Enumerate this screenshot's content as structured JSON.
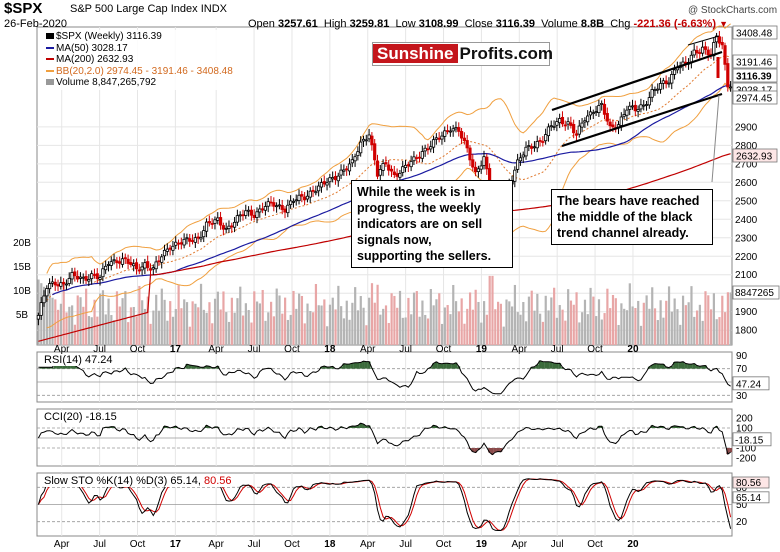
{
  "header": {
    "symbol": "$SPX",
    "name": "S&P 500 Large Cap Index",
    "exchange": "INDX",
    "date": "26-Feb-2020",
    "open_label": "Open",
    "open": "3257.61",
    "high_label": "High",
    "high": "3259.81",
    "low_label": "Low",
    "low": "3108.99",
    "close_label": "Close",
    "close": "3116.39",
    "volume_label": "Volume",
    "volume": "8.8B",
    "chg_label": "Chg",
    "chg": "-221.36 (-6.63%)",
    "watermark": "@ StockCharts.com"
  },
  "logo": {
    "part1": "Sunshine",
    "part2": "Profits.com"
  },
  "legend": [
    {
      "text": "$SPX (Weekly) 3116.39",
      "color": "#000000"
    },
    {
      "text": "MA(50) 3028.17",
      "color": "#1a1aa0"
    },
    {
      "text": "MA(200) 2632.93",
      "color": "#c00000"
    },
    {
      "text": "BB(20,2.0) 2974.45 - 3191.46 - 3408.48",
      "color": "#d2691e"
    },
    {
      "text": "Volume 8,847,265,792",
      "color": "#000000"
    }
  ],
  "annotations": {
    "left": "While the week is in\nprogress, the weekly\nindicators are on sell\nsignals now,\nsupporting the sellers.",
    "right": "The bears have reached\nthe middle of the black\ntrend channel already."
  },
  "colors": {
    "up": "#000000",
    "down": "#d00000",
    "vol_up": "#b4b4b4",
    "vol_down": "#e8a6a6",
    "ma50": "#1a1aa0",
    "ma200": "#c00000",
    "bb": "#f0a040",
    "bbmid": "#e07a30",
    "sto_k": "#000000",
    "sto_d": "#d00000",
    "ind_fill": "#3a6a3a",
    "ind_fill_low": "#8a4a4a"
  },
  "chart_data": [
    {
      "type": "candlestick",
      "title": "$SPX (Weekly) 3116.39",
      "x_ticks": [
        "Apr",
        "Jul",
        "Oct",
        "17",
        "Apr",
        "Jul",
        "Oct",
        "18",
        "Apr",
        "Jul",
        "Oct",
        "19",
        "Apr",
        "Jul",
        "Oct",
        "20"
      ],
      "ylim": [
        1720,
        3440
      ],
      "y_ticks": [
        1800,
        1900,
        2000,
        2100,
        2200,
        2300,
        2400,
        2500,
        2600,
        2700,
        2800,
        2900
      ],
      "price_tags": [
        "3408.48",
        "3191.46",
        "3116.39",
        "3028.17",
        "2974.45",
        "2632.93"
      ],
      "volume_ticks": [
        "5B",
        "10B",
        "15B",
        "20B"
      ],
      "volume_tag": "8847265",
      "close_series_approx": [
        [
          0,
          1880
        ],
        [
          3,
          2030
        ],
        [
          6,
          2060
        ],
        [
          9,
          2050
        ],
        [
          12,
          2090
        ],
        [
          16,
          2080
        ],
        [
          19,
          2100
        ],
        [
          22,
          2080
        ],
        [
          25,
          2170
        ],
        [
          28,
          2180
        ],
        [
          31,
          2175
        ],
        [
          35,
          2130
        ],
        [
          38,
          2160
        ],
        [
          41,
          2125
        ],
        [
          44,
          2200
        ],
        [
          47,
          2260
        ],
        [
          50,
          2270
        ],
        [
          53,
          2280
        ],
        [
          57,
          2300
        ],
        [
          60,
          2370
        ],
        [
          64,
          2390
        ],
        [
          67,
          2350
        ],
        [
          71,
          2400
        ],
        [
          74,
          2440
        ],
        [
          77,
          2430
        ],
        [
          81,
          2470
        ],
        [
          84,
          2480
        ],
        [
          88,
          2460
        ],
        [
          91,
          2500
        ],
        [
          95,
          2520
        ],
        [
          98,
          2560
        ],
        [
          101,
          2580
        ],
        [
          105,
          2620
        ],
        [
          108,
          2660
        ],
        [
          112,
          2700
        ],
        [
          115,
          2810
        ],
        [
          118,
          2870
        ],
        [
          121,
          2640
        ],
        [
          124,
          2700
        ],
        [
          127,
          2640
        ],
        [
          131,
          2680
        ],
        [
          134,
          2720
        ],
        [
          137,
          2770
        ],
        [
          140,
          2800
        ],
        [
          144,
          2850
        ],
        [
          147,
          2900
        ],
        [
          150,
          2880
        ],
        [
          153,
          2770
        ],
        [
          156,
          2650
        ],
        [
          159,
          2740
        ],
        [
          162,
          2490
        ],
        [
          165,
          2420
        ],
        [
          168,
          2590
        ],
        [
          171,
          2700
        ],
        [
          174,
          2780
        ],
        [
          177,
          2810
        ],
        [
          180,
          2830
        ],
        [
          183,
          2900
        ],
        [
          186,
          2940
        ],
        [
          189,
          2920
        ],
        [
          192,
          2850
        ],
        [
          195,
          2950
        ],
        [
          198,
          2990
        ],
        [
          201,
          3010
        ],
        [
          204,
          2890
        ],
        [
          207,
          2920
        ],
        [
          210,
          3000
        ],
        [
          213,
          2990
        ],
        [
          216,
          3020
        ],
        [
          219,
          3090
        ],
        [
          222,
          3120
        ],
        [
          225,
          3150
        ],
        [
          228,
          3240
        ],
        [
          231,
          3230
        ],
        [
          234,
          3300
        ],
        [
          237,
          3330
        ],
        [
          240,
          3290
        ],
        [
          242,
          3380
        ],
        [
          244,
          3340
        ],
        [
          246,
          3116
        ]
      ]
    },
    {
      "type": "line",
      "title": "RSI(14) 47.24",
      "ylim": [
        20,
        95
      ],
      "y_ticks": [
        90,
        70,
        50,
        30
      ],
      "value_tag": "47.24"
    },
    {
      "type": "line",
      "title": "CCI(20) -18.15",
      "ylim": [
        -280,
        290
      ],
      "y_ticks": [
        200,
        100,
        0,
        -100,
        -200
      ],
      "value_tag": "-18.15"
    },
    {
      "type": "line",
      "title": "Slow STO %K(14) %D(3) 65.14, 80.56",
      "ylim": [
        -5,
        105
      ],
      "y_ticks": [
        80,
        50,
        20
      ],
      "value_tags": [
        "80.56",
        "65.14"
      ]
    }
  ]
}
